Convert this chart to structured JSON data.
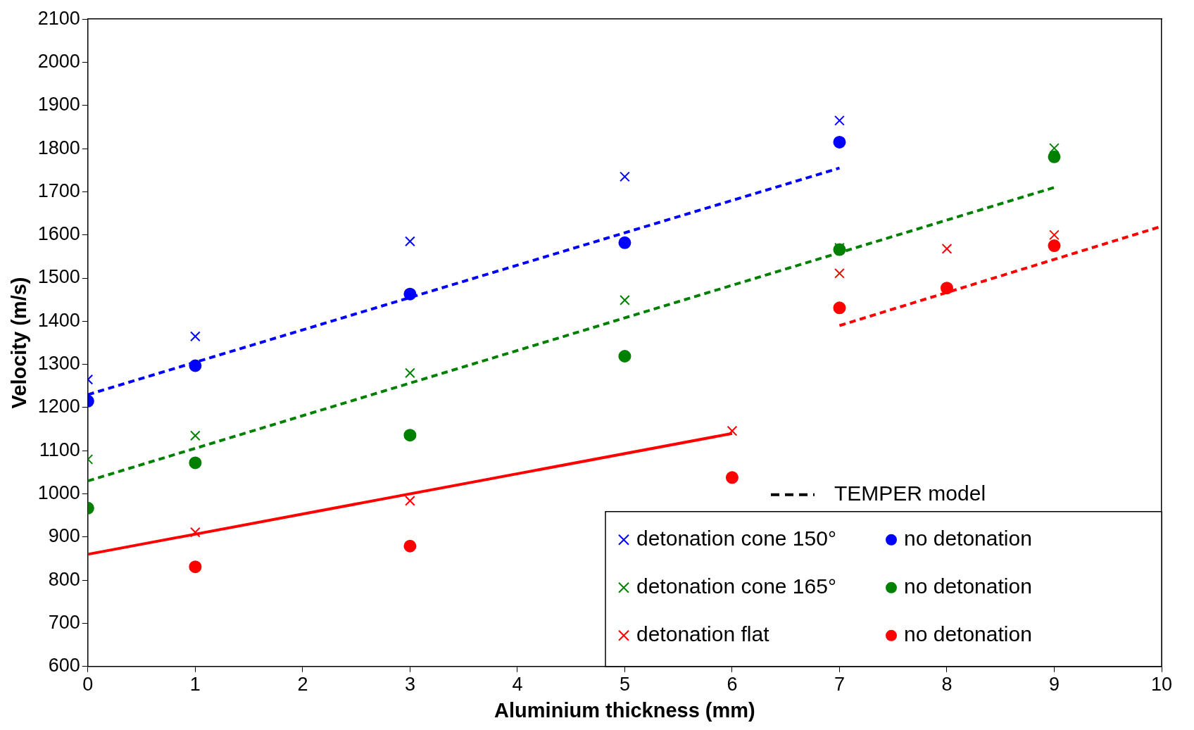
{
  "chart_data": {
    "type": "scatter",
    "xlabel": "Aluminium thickness (mm)",
    "ylabel": "Velocity (m/s)",
    "xlim": [
      0,
      10
    ],
    "xticks": [
      0,
      1,
      2,
      3,
      4,
      5,
      6,
      7,
      8,
      9,
      10
    ],
    "ylim": [
      600,
      2100
    ],
    "yticks": [
      600,
      700,
      800,
      900,
      1000,
      1100,
      1200,
      1300,
      1400,
      1500,
      1600,
      1700,
      1800,
      1900,
      2000,
      2100
    ],
    "grid": false,
    "legend": "bottom right",
    "annotations": [
      "TEMPER model"
    ],
    "series": [
      {
        "name": "detonation cone 150°",
        "color": "#0000ff",
        "marker": "cross",
        "x": [
          0,
          1,
          3,
          5,
          7
        ],
        "values": [
          1265,
          1365,
          1585,
          1735,
          1865
        ]
      },
      {
        "name": "no detonation",
        "color": "#0000ff",
        "marker": "circle",
        "x": [
          0,
          1,
          3,
          5,
          7
        ],
        "values": [
          1215,
          1297,
          1463,
          1582,
          1815
        ]
      },
      {
        "name": "detonation cone 165°",
        "color": "#008000",
        "marker": "cross",
        "x": [
          0,
          1,
          3,
          5,
          7,
          9
        ],
        "values": [
          1080,
          1135,
          1280,
          1449,
          1570,
          1801
        ]
      },
      {
        "name": "no detonation",
        "color": "#008000",
        "marker": "circle",
        "x": [
          0,
          1,
          3,
          5,
          7,
          9
        ],
        "values": [
          967,
          1072,
          1136,
          1319,
          1566,
          1781
        ]
      },
      {
        "name": "detonation flat",
        "color": "#ff0000",
        "marker": "cross",
        "x": [
          1,
          3,
          6,
          7,
          8,
          9
        ],
        "values": [
          911,
          984,
          1146,
          1511,
          1568,
          1600
        ]
      },
      {
        "name": "no detonation",
        "color": "#ff0000",
        "marker": "circle",
        "x": [
          1,
          3,
          6,
          7,
          8,
          9
        ],
        "values": [
          831,
          879,
          1038,
          1431,
          1477,
          1575
        ]
      },
      {
        "type": "line",
        "color": "#0000ff",
        "line_style": "dashed",
        "marker": "none",
        "x": [
          0,
          7
        ],
        "values": [
          1230,
          1755
        ]
      },
      {
        "type": "line",
        "color": "#008000",
        "line_style": "dashed",
        "marker": "none",
        "x": [
          0,
          9
        ],
        "values": [
          1030,
          1710
        ]
      },
      {
        "type": "line",
        "color": "#ff0000",
        "line_style": "dashed",
        "marker": "none",
        "x": [
          7,
          10
        ],
        "values": [
          1390,
          1620
        ]
      },
      {
        "type": "line",
        "color": "#ff0000",
        "line_style": "solid",
        "marker": "none",
        "x": [
          0,
          6
        ],
        "values": [
          860,
          1140
        ]
      }
    ]
  }
}
